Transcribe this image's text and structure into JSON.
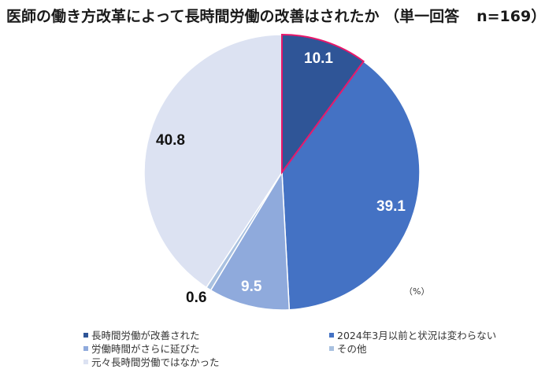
{
  "title": {
    "text": "医師の働き方改革によって長時間労働の改善はされたか （単一回答",
    "n": "n=169）"
  },
  "unit_label": "（%）",
  "chart_data": {
    "type": "pie",
    "title": "医師の働き方改革によって長時間労働の改善はされたか （単一回答 n=169）",
    "unit": "%",
    "start_angle_deg": 0,
    "direction": "clockwise",
    "categories": [
      "長時間労働が改善された",
      "2024年3月以前と状況は変わらない",
      "労働時間がさらに延びた",
      "その他",
      "元々長時間労働ではなかった"
    ],
    "values": [
      10.1,
      39.1,
      9.5,
      0.6,
      40.8
    ],
    "colors": [
      "#2f5597",
      "#4472c4",
      "#8faadc",
      "#a9c1e0",
      "#dce2f2"
    ],
    "highlight": {
      "index": 0,
      "stroke": "#e8176a"
    },
    "legend_position": "bottom"
  },
  "labels": [
    "10.1",
    "39.1",
    "9.5",
    "0.6",
    "40.8"
  ],
  "legend": [
    {
      "label": "長時間労働が改善された",
      "color": "#2f5597"
    },
    {
      "label": "2024年3月以前と状況は変わらない",
      "color": "#4472c4"
    },
    {
      "label": "労働時間がさらに延びた",
      "color": "#8faadc"
    },
    {
      "label": "その他",
      "color": "#a9c1e0"
    },
    {
      "label": "元々長時間労働ではなかった",
      "color": "#dce2f2"
    }
  ]
}
